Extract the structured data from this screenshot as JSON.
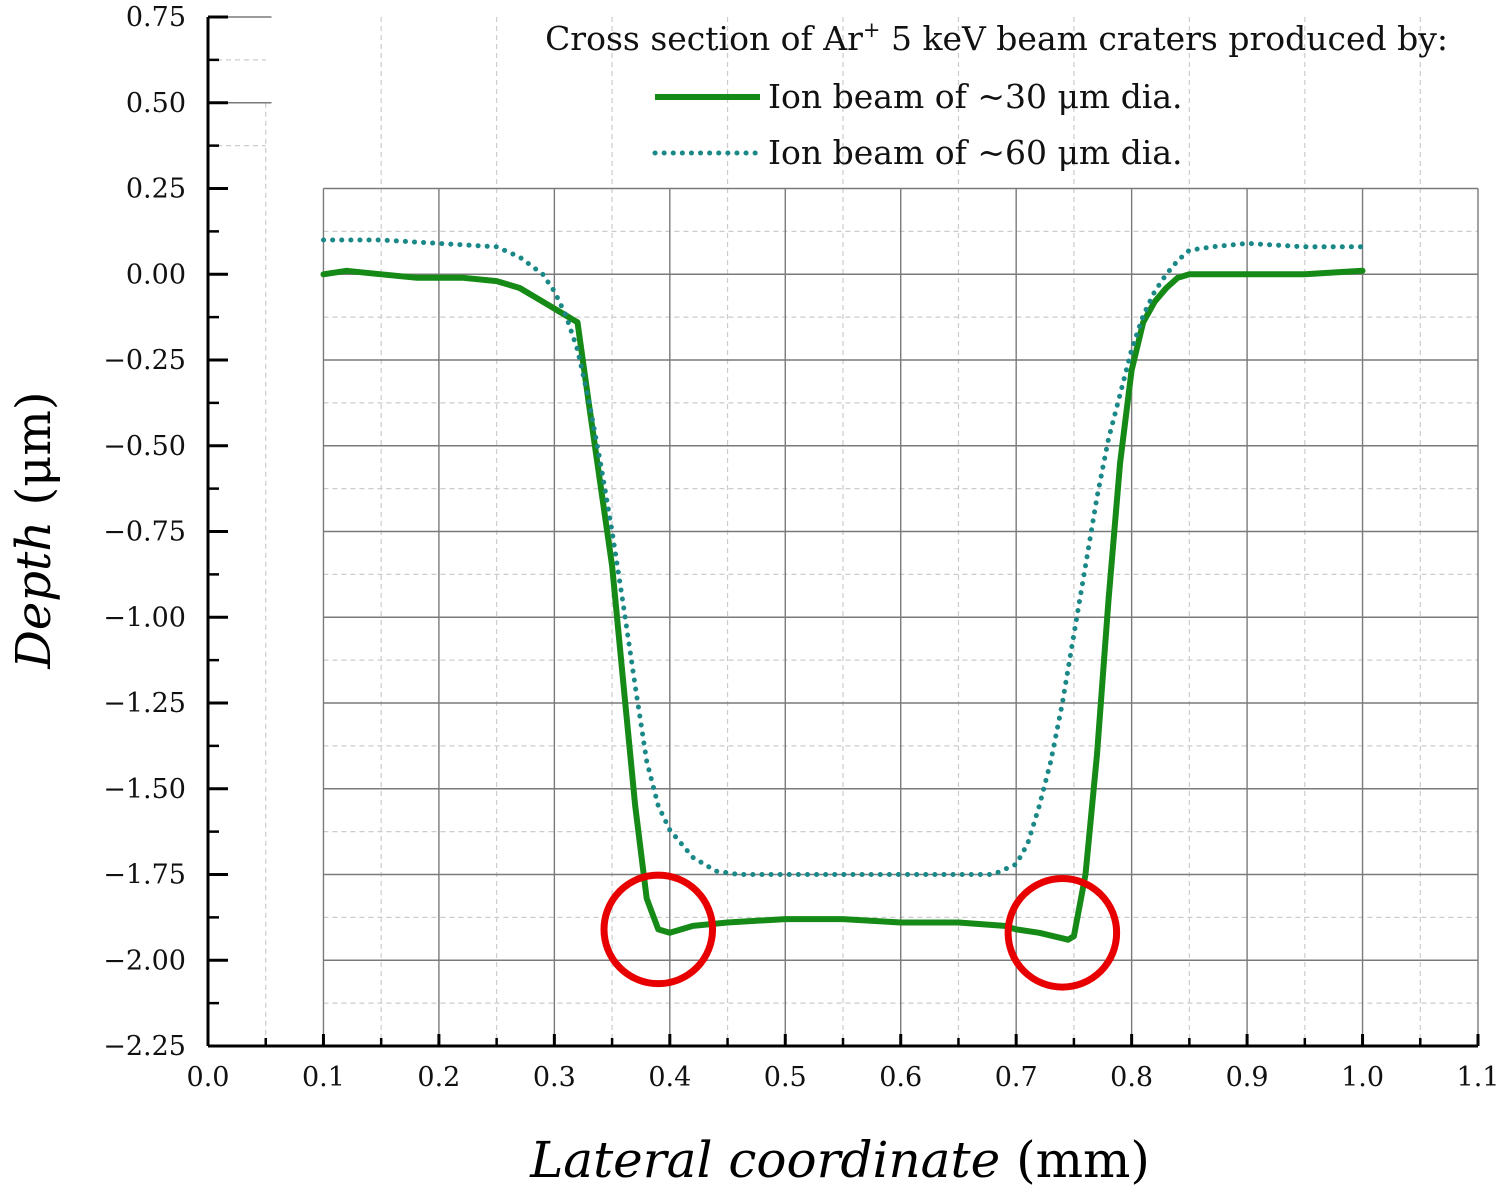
{
  "chart_data": {
    "type": "line",
    "title": "",
    "xlabel": {
      "italic": "Lateral coordinate",
      "unit": "(mm)"
    },
    "ylabel": {
      "italic": "Depth",
      "unit": "(μm)"
    },
    "xlim": [
      0.0,
      1.1
    ],
    "ylim": [
      -2.25,
      0.75
    ],
    "xticks": [
      "0.0",
      "0.1",
      "0.2",
      "0.3",
      "0.4",
      "0.5",
      "0.6",
      "0.7",
      "0.8",
      "0.9",
      "1.0",
      "1.1"
    ],
    "yticks": [
      "0.75",
      "0.50",
      "0.25",
      "0.00",
      "−0.25",
      "−0.50",
      "−0.75",
      "−1.00",
      "−1.25",
      "−1.50",
      "−1.75",
      "−2.00",
      "−2.25"
    ],
    "grid": true,
    "legend": {
      "placement": "top-right",
      "header_prefix": "Cross section of Ar",
      "header_sup": "+",
      "header_suffix": " 5 keV beam craters produced by:"
    },
    "series": [
      {
        "name": "Ion beam of ~30 μm dia.",
        "color": "#168a16",
        "style": "solid",
        "x": [
          0.1,
          0.12,
          0.15,
          0.18,
          0.2,
          0.22,
          0.25,
          0.27,
          0.29,
          0.305,
          0.32,
          0.33,
          0.35,
          0.36,
          0.37,
          0.38,
          0.39,
          0.4,
          0.42,
          0.45,
          0.5,
          0.55,
          0.6,
          0.65,
          0.69,
          0.7,
          0.72,
          0.745,
          0.75,
          0.76,
          0.77,
          0.78,
          0.79,
          0.8,
          0.81,
          0.82,
          0.83,
          0.84,
          0.85,
          0.88,
          0.9,
          0.95,
          1.0
        ],
        "y": [
          0.0,
          0.01,
          0.0,
          -0.01,
          -0.01,
          -0.01,
          -0.02,
          -0.04,
          -0.08,
          -0.11,
          -0.14,
          -0.38,
          -0.85,
          -1.2,
          -1.55,
          -1.82,
          -1.91,
          -1.92,
          -1.9,
          -1.89,
          -1.88,
          -1.88,
          -1.89,
          -1.89,
          -1.9,
          -1.91,
          -1.92,
          -1.94,
          -1.93,
          -1.75,
          -1.4,
          -0.95,
          -0.55,
          -0.28,
          -0.14,
          -0.08,
          -0.04,
          -0.01,
          0.0,
          0.0,
          0.0,
          0.0,
          0.01
        ]
      },
      {
        "name": "Ion beam of ~60 μm dia.",
        "color": "#1b8888",
        "style": "dotted",
        "x": [
          0.1,
          0.15,
          0.2,
          0.25,
          0.27,
          0.29,
          0.3,
          0.31,
          0.32,
          0.33,
          0.34,
          0.35,
          0.36,
          0.37,
          0.38,
          0.39,
          0.4,
          0.42,
          0.44,
          0.46,
          0.5,
          0.55,
          0.6,
          0.65,
          0.68,
          0.7,
          0.71,
          0.72,
          0.73,
          0.74,
          0.75,
          0.76,
          0.77,
          0.78,
          0.79,
          0.8,
          0.81,
          0.82,
          0.83,
          0.84,
          0.85,
          0.87,
          0.9,
          0.95,
          1.0
        ],
        "y": [
          0.1,
          0.1,
          0.09,
          0.08,
          0.05,
          0.0,
          -0.05,
          -0.12,
          -0.22,
          -0.37,
          -0.55,
          -0.75,
          -0.97,
          -1.2,
          -1.42,
          -1.55,
          -1.62,
          -1.7,
          -1.74,
          -1.75,
          -1.75,
          -1.75,
          -1.75,
          -1.75,
          -1.75,
          -1.72,
          -1.66,
          -1.55,
          -1.42,
          -1.25,
          -1.05,
          -0.85,
          -0.65,
          -0.48,
          -0.35,
          -0.22,
          -0.12,
          -0.05,
          0.0,
          0.04,
          0.07,
          0.08,
          0.09,
          0.08,
          0.08
        ]
      }
    ],
    "annotations": [
      {
        "type": "circle",
        "color": "#e80000",
        "cx": 0.39,
        "cy": -1.91,
        "r_mm": 0.047
      },
      {
        "type": "circle",
        "color": "#e80000",
        "cx": 0.74,
        "cy": -1.92,
        "r_mm": 0.047
      }
    ]
  }
}
